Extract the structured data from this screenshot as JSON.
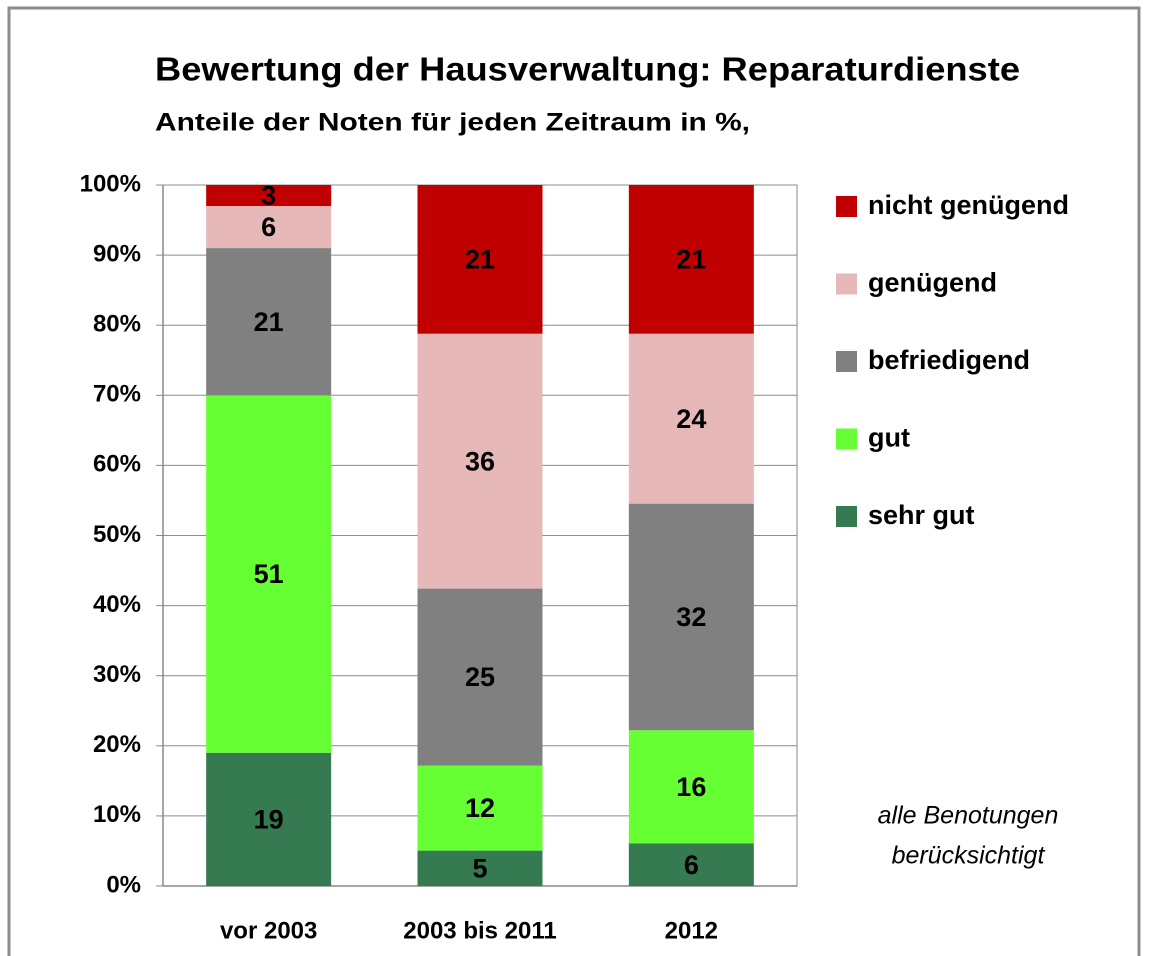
{
  "chart_data": {
    "type": "bar",
    "stacking": "percent",
    "title": "Bewertung der Hausverwaltung: Reparaturdienste",
    "subtitle": "Anteile der Noten für jeden Zeitraum in %,",
    "note": [
      "alle Benotungen",
      "berücksichtigt"
    ],
    "categories": [
      "vor 2003",
      "2003 bis 2011",
      "2012"
    ],
    "series": [
      {
        "name": "sehr gut",
        "color": "#357a50",
        "values": [
          19,
          5,
          6
        ]
      },
      {
        "name": "gut",
        "color": "#66ff33",
        "values": [
          51,
          12,
          16
        ]
      },
      {
        "name": "befriedigend",
        "color": "#808080",
        "values": [
          21,
          25,
          32
        ]
      },
      {
        "name": "genügend",
        "color": "#e6b8b8",
        "values": [
          6,
          36,
          24
        ]
      },
      {
        "name": "nicht genügend",
        "color": "#c00000",
        "values": [
          3,
          21,
          21
        ]
      }
    ],
    "ylim": [
      0,
      100
    ],
    "yticks": [
      {
        "value": 0,
        "label": "0%"
      },
      {
        "value": 10,
        "label": "10%"
      },
      {
        "value": 20,
        "label": "20%"
      },
      {
        "value": 30,
        "label": "30%"
      },
      {
        "value": 40,
        "label": "40%"
      },
      {
        "value": 50,
        "label": "50%"
      },
      {
        "value": 60,
        "label": "60%"
      },
      {
        "value": 70,
        "label": "70%"
      },
      {
        "value": 80,
        "label": "80%"
      },
      {
        "value": 90,
        "label": "90%"
      },
      {
        "value": 100,
        "label": "100%"
      }
    ],
    "grid": true,
    "legend": "right"
  }
}
